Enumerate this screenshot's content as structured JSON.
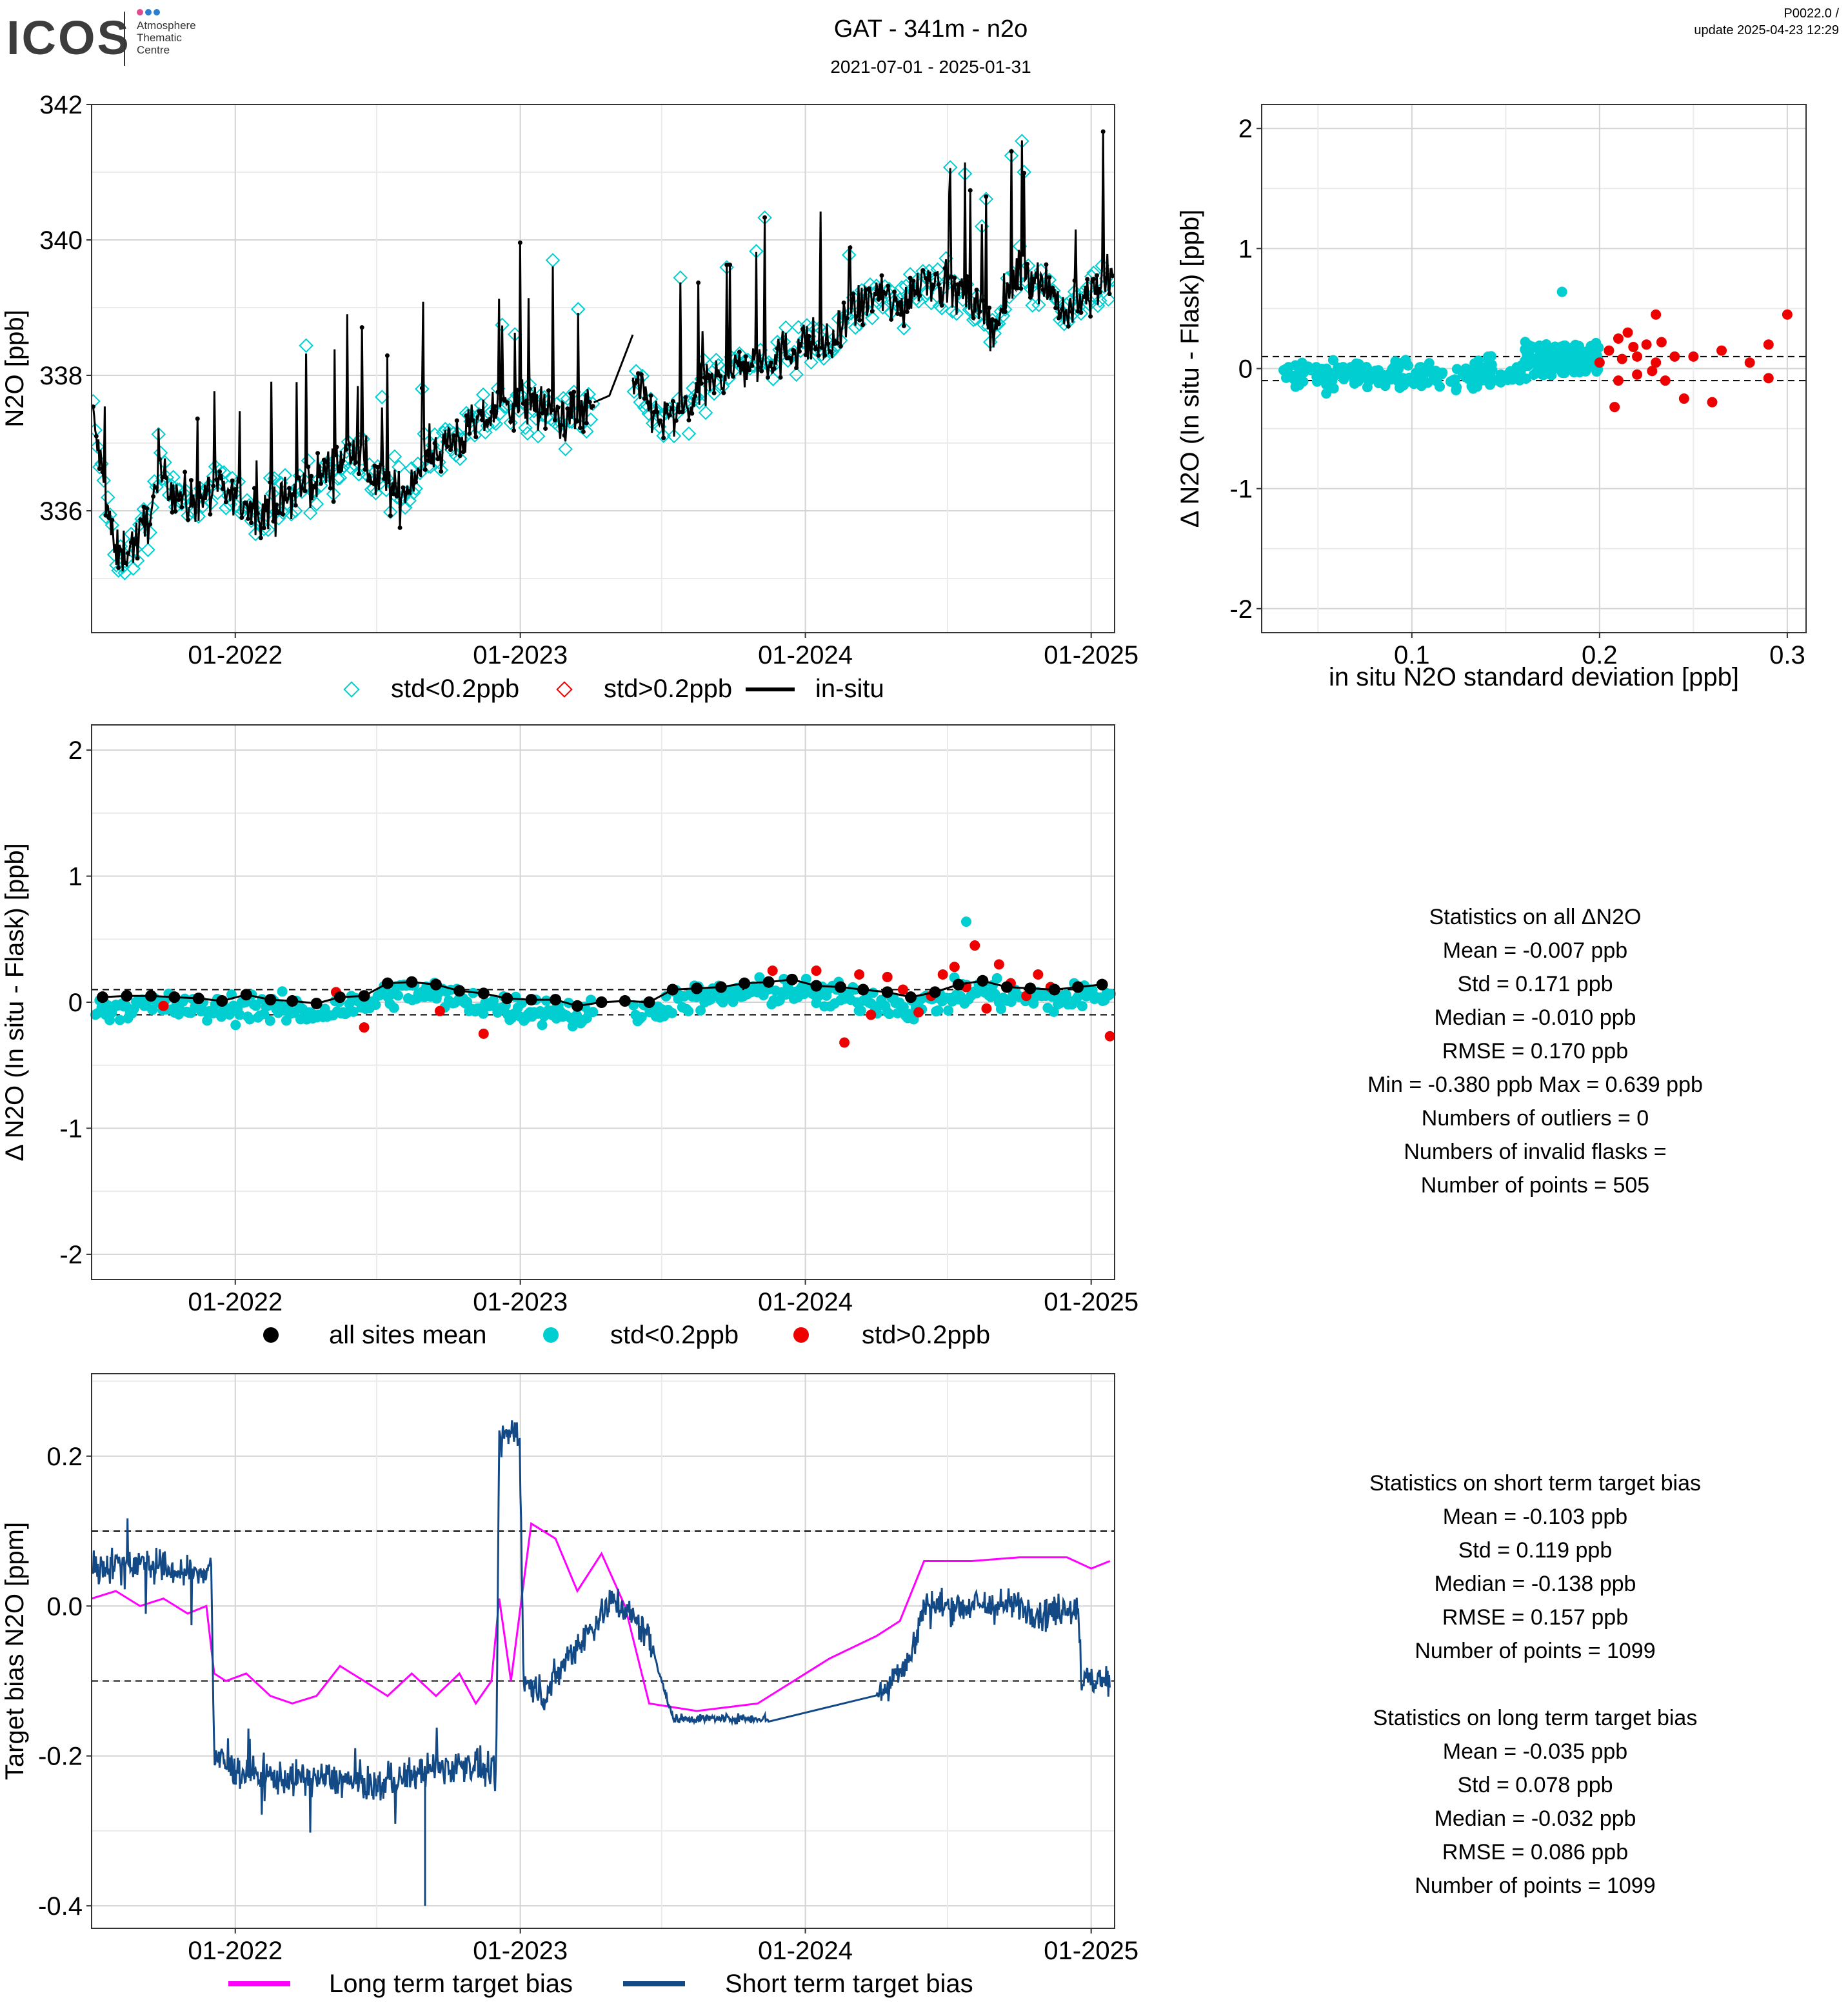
{
  "header": {
    "logo_text": "ICOS",
    "logo_sub": [
      "Atmosphere",
      "Thematic",
      "Centre"
    ],
    "title": "GAT - 341m - n2o",
    "date_range": "2021-07-01 - 2025-01-31",
    "version": "P0022.0 /",
    "update": "update  2025-04-23 12:29"
  },
  "colors": {
    "cyan": "#00CED1",
    "red": "#EE0000",
    "black": "#000000",
    "magenta": "#FF00FF",
    "navy": "#134A86",
    "grid_major": "#D4D4D4",
    "grid_minor": "#EBEBEB"
  },
  "legends": {
    "ts": [
      "std<0.2ppb",
      "std>0.2ppb",
      "in-situ"
    ],
    "delta": [
      "all sites mean",
      "std<0.2ppb",
      "std>0.2ppb"
    ],
    "bias": [
      "Long term target bias",
      "Short term target bias"
    ]
  },
  "stats_delta": {
    "title": "Statistics on all ΔN2O",
    "lines": [
      "Mean =  -0.007 ppb",
      "Std =  0.171 ppb",
      "Median =  -0.010 ppb",
      "RMSE =  0.170 ppb",
      "Min =  -0.380 ppb Max =  0.639 ppb",
      "Numbers of outliers =  0",
      "Numbers of invalid flasks = ",
      "Number of points =  505"
    ]
  },
  "stats_bias": {
    "title_short": "Statistics on short term target bias",
    "lines_short": [
      "Mean =  -0.103 ppb",
      "Std =  0.119 ppb",
      "Median =  -0.138 ppb",
      "RMSE =  0.157 ppb",
      "Number of points =  1099"
    ],
    "title_long": "Statistics on long term target bias",
    "lines_long": [
      "Mean =  -0.035 ppb",
      "Std =  0.078 ppb",
      "Median =  -0.032 ppb",
      "RMSE =  0.086 ppb",
      "Number of points =  1099"
    ]
  },
  "chart_data": [
    {
      "id": "ts",
      "type": "line",
      "ylabel": "N2O [ppb]",
      "xlim": [
        "2021-07-01",
        "2025-01-31"
      ],
      "ylim": [
        334.2,
        342.0
      ],
      "xticks": [
        "01-2022",
        "01-2023",
        "01-2024",
        "01-2025"
      ],
      "xtick_dates": [
        "2022-01-01",
        "2023-01-01",
        "2024-01-01",
        "2025-01-01"
      ],
      "yticks": [
        336,
        338,
        340,
        342
      ],
      "series": [
        {
          "name": "in-situ",
          "x": [
            "2021-07-01",
            "2021-08-01",
            "2021-09-01",
            "2021-10-01",
            "2021-11-01",
            "2021-12-01",
            "2022-01-01",
            "2022-02-01",
            "2022-03-01",
            "2022-04-01",
            "2022-05-01",
            "2022-06-01",
            "2022-07-01",
            "2022-08-01",
            "2022-09-01",
            "2022-10-01",
            "2022-11-01",
            "2022-12-01",
            "2023-01-01",
            "2023-02-01",
            "2023-03-01",
            "2023-04-01",
            "2023-06-01",
            "2023-07-01",
            "2023-08-01",
            "2023-09-01",
            "2023-10-01",
            "2023-11-01",
            "2023-12-01",
            "2024-01-01",
            "2024-02-01",
            "2024-03-01",
            "2024-04-01",
            "2024-05-01",
            "2024-06-01",
            "2024-07-01",
            "2024-08-01",
            "2024-09-01",
            "2024-10-01",
            "2024-11-01",
            "2024-12-01",
            "2025-01-01",
            "2025-01-31"
          ],
          "values": [
            337.5,
            335.3,
            335.6,
            336.5,
            336.1,
            336.3,
            336.2,
            336.0,
            336.1,
            336.4,
            336.6,
            336.9,
            336.5,
            336.2,
            336.8,
            337.0,
            337.2,
            337.5,
            337.6,
            337.5,
            337.4,
            337.5,
            337.8,
            337.3,
            337.5,
            337.9,
            338.1,
            338.2,
            338.3,
            338.5,
            338.4,
            338.9,
            339.2,
            339.0,
            339.5,
            339.3,
            339.1,
            338.7,
            339.6,
            339.4,
            338.9,
            339.2,
            339.5
          ]
        },
        {
          "name": "std<0.2ppb"
        },
        {
          "name": "std>0.2ppb"
        }
      ]
    },
    {
      "id": "scatter",
      "type": "scatter",
      "xlabel": "in situ N2O standard deviation [ppb]",
      "ylabel": "Δ N2O (In situ - Flask) [ppb]",
      "xlim": [
        0.02,
        0.31
      ],
      "ylim": [
        -2.2,
        2.2
      ],
      "xticks": [
        0.1,
        0.2,
        0.3
      ],
      "yticks": [
        -2,
        -1,
        0,
        1,
        2
      ],
      "hlines": [
        0.1,
        -0.1
      ],
      "red_points": [
        [
          0.2,
          0.05
        ],
        [
          0.205,
          0.15
        ],
        [
          0.21,
          0.25
        ],
        [
          0.21,
          -0.1
        ],
        [
          0.215,
          0.3
        ],
        [
          0.22,
          0.1
        ],
        [
          0.22,
          -0.05
        ],
        [
          0.225,
          0.2
        ],
        [
          0.23,
          0.45
        ],
        [
          0.23,
          0.05
        ],
        [
          0.235,
          -0.1
        ],
        [
          0.24,
          0.1
        ],
        [
          0.245,
          -0.25
        ],
        [
          0.25,
          0.1
        ],
        [
          0.26,
          -0.28
        ],
        [
          0.265,
          0.15
        ],
        [
          0.28,
          0.05
        ],
        [
          0.29,
          0.2
        ],
        [
          0.29,
          -0.08
        ],
        [
          0.3,
          0.45
        ],
        [
          0.208,
          -0.32
        ],
        [
          0.218,
          0.18
        ],
        [
          0.228,
          -0.02
        ],
        [
          0.233,
          0.22
        ],
        [
          0.212,
          0.08
        ]
      ]
    },
    {
      "id": "delta",
      "type": "scatter",
      "ylabel": "Δ N2O (In situ - Flask) [ppb]",
      "xlim": [
        "2021-07-01",
        "2025-01-31"
      ],
      "ylim": [
        -2.2,
        2.2
      ],
      "xticks": [
        "01-2022",
        "01-2023",
        "01-2024",
        "01-2025"
      ],
      "xtick_dates": [
        "2022-01-01",
        "2023-01-01",
        "2024-01-01",
        "2025-01-01"
      ],
      "yticks": [
        -2,
        -1,
        0,
        1,
        2
      ],
      "hlines": [
        0.1,
        -0.1
      ],
      "series": [
        {
          "name": "all sites mean",
          "x": [
            "2021-07-15",
            "2021-08-15",
            "2021-09-15",
            "2021-10-15",
            "2021-11-15",
            "2021-12-15",
            "2022-01-15",
            "2022-02-15",
            "2022-03-15",
            "2022-04-15",
            "2022-05-15",
            "2022-06-15",
            "2022-07-15",
            "2022-08-15",
            "2022-09-15",
            "2022-10-15",
            "2022-11-15",
            "2022-12-15",
            "2023-01-15",
            "2023-02-15",
            "2023-03-15",
            "2023-04-15",
            "2023-05-15",
            "2023-06-15",
            "2023-07-15",
            "2023-08-15",
            "2023-09-15",
            "2023-10-15",
            "2023-11-15",
            "2023-12-15",
            "2024-01-15",
            "2024-02-15",
            "2024-03-15",
            "2024-04-15",
            "2024-05-15",
            "2024-06-15",
            "2024-07-15",
            "2024-08-15",
            "2024-09-15",
            "2024-10-15",
            "2024-11-15",
            "2024-12-15",
            "2025-01-15"
          ],
          "values": [
            0.04,
            0.05,
            0.05,
            0.04,
            0.03,
            0.01,
            0.06,
            0.02,
            0.01,
            -0.01,
            0.04,
            0.05,
            0.15,
            0.16,
            0.14,
            0.09,
            0.07,
            0.03,
            0.02,
            0.02,
            -0.03,
            0.0,
            0.01,
            0.0,
            0.1,
            0.11,
            0.12,
            0.15,
            0.16,
            0.18,
            0.13,
            0.12,
            0.1,
            0.08,
            0.04,
            0.08,
            0.14,
            0.17,
            0.12,
            0.11,
            0.1,
            0.12,
            0.14
          ]
        },
        {
          "name": "std<0.2ppb"
        },
        {
          "name": "std>0.2ppb",
          "x": [
            "2021-10-01",
            "2022-05-10",
            "2022-06-15",
            "2022-09-20",
            "2022-11-15",
            "2023-11-20",
            "2024-01-15",
            "2024-02-20",
            "2024-03-10",
            "2024-03-25",
            "2024-04-15",
            "2024-05-05",
            "2024-05-25",
            "2024-06-10",
            "2024-06-25",
            "2024-07-10",
            "2024-07-25",
            "2024-08-05",
            "2024-08-20",
            "2024-09-05",
            "2024-09-20",
            "2024-10-10",
            "2024-10-25",
            "2024-11-10",
            "2025-01-25"
          ],
          "values": [
            -0.03,
            0.08,
            -0.2,
            -0.07,
            -0.25,
            0.25,
            0.25,
            -0.32,
            0.22,
            -0.1,
            0.2,
            0.1,
            -0.08,
            0.05,
            0.22,
            0.28,
            0.12,
            0.45,
            -0.05,
            0.3,
            0.15,
            0.05,
            0.22,
            0.12,
            -0.27
          ]
        }
      ]
    },
    {
      "id": "bias",
      "type": "line",
      "ylabel": "Target bias N2O [ppm]",
      "xlim": [
        "2021-07-01",
        "2025-01-31"
      ],
      "ylim": [
        -0.43,
        0.31
      ],
      "xticks": [
        "01-2022",
        "01-2023",
        "01-2024",
        "01-2025"
      ],
      "xtick_dates": [
        "2022-01-01",
        "2023-01-01",
        "2024-01-01",
        "2025-01-01"
      ],
      "yticks": [
        -0.4,
        -0.2,
        0.0,
        0.2
      ],
      "hlines": [
        0.1,
        -0.1
      ],
      "series": [
        {
          "name": "Long term target bias",
          "x": [
            "2021-07-01",
            "2021-08-01",
            "2021-09-01",
            "2021-10-01",
            "2021-11-01",
            "2021-11-25",
            "2021-12-05",
            "2021-12-20",
            "2022-01-15",
            "2022-02-15",
            "2022-03-15",
            "2022-04-15",
            "2022-05-15",
            "2022-06-15",
            "2022-07-15",
            "2022-08-15",
            "2022-09-15",
            "2022-10-15",
            "2022-11-05",
            "2022-11-25",
            "2022-12-05",
            "2022-12-20",
            "2023-01-15",
            "2023-02-15",
            "2023-03-15",
            "2023-04-15",
            "2023-05-15",
            "2023-06-15",
            "2023-08-15",
            "2023-11-01",
            "2024-02-01",
            "2024-04-01",
            "2024-05-01",
            "2024-06-01",
            "2024-08-01",
            "2024-10-01",
            "2024-12-01",
            "2025-01-01",
            "2025-01-25"
          ],
          "values": [
            0.01,
            0.02,
            0.0,
            0.01,
            -0.01,
            0.0,
            -0.09,
            -0.1,
            -0.09,
            -0.12,
            -0.13,
            -0.12,
            -0.08,
            -0.1,
            -0.12,
            -0.09,
            -0.12,
            -0.09,
            -0.13,
            -0.1,
            0.01,
            -0.1,
            0.11,
            0.09,
            0.02,
            0.07,
            0.0,
            -0.13,
            -0.14,
            -0.13,
            -0.07,
            -0.04,
            -0.02,
            0.06,
            0.06,
            0.065,
            0.065,
            0.05,
            0.06
          ]
        },
        {
          "name": "Short term target bias",
          "x": [
            "2021-07-01",
            "2021-08-15",
            "2021-10-01",
            "2021-11-15",
            "2021-12-01",
            "2021-12-05",
            "2022-01-01",
            "2022-03-01",
            "2022-05-01",
            "2022-07-01",
            "2022-09-01",
            "2022-11-01",
            "2022-12-01",
            "2022-12-05",
            "2022-12-31",
            "2023-01-05",
            "2023-02-01",
            "2023-03-01",
            "2023-04-01",
            "2023-05-01",
            "2023-06-15",
            "2023-07-15",
            "2023-09-15",
            "2023-11-15",
            "2024-04-01",
            "2024-04-15",
            "2024-05-01",
            "2024-05-15",
            "2024-06-01",
            "2024-08-01",
            "2024-10-01",
            "2024-11-01",
            "2024-12-15",
            "2024-12-20",
            "2025-01-25"
          ],
          "values": [
            0.05,
            0.06,
            0.05,
            0.04,
            0.06,
            -0.2,
            -0.22,
            -0.23,
            -0.23,
            -0.24,
            -0.22,
            -0.21,
            -0.23,
            0.22,
            0.24,
            -0.1,
            -0.12,
            -0.07,
            -0.03,
            0.01,
            -0.04,
            -0.15,
            -0.15,
            -0.15,
            -0.12,
            -0.11,
            -0.08,
            -0.07,
            0.0,
            0.0,
            0.0,
            -0.01,
            0.0,
            -0.1,
            -0.1
          ]
        }
      ]
    }
  ]
}
